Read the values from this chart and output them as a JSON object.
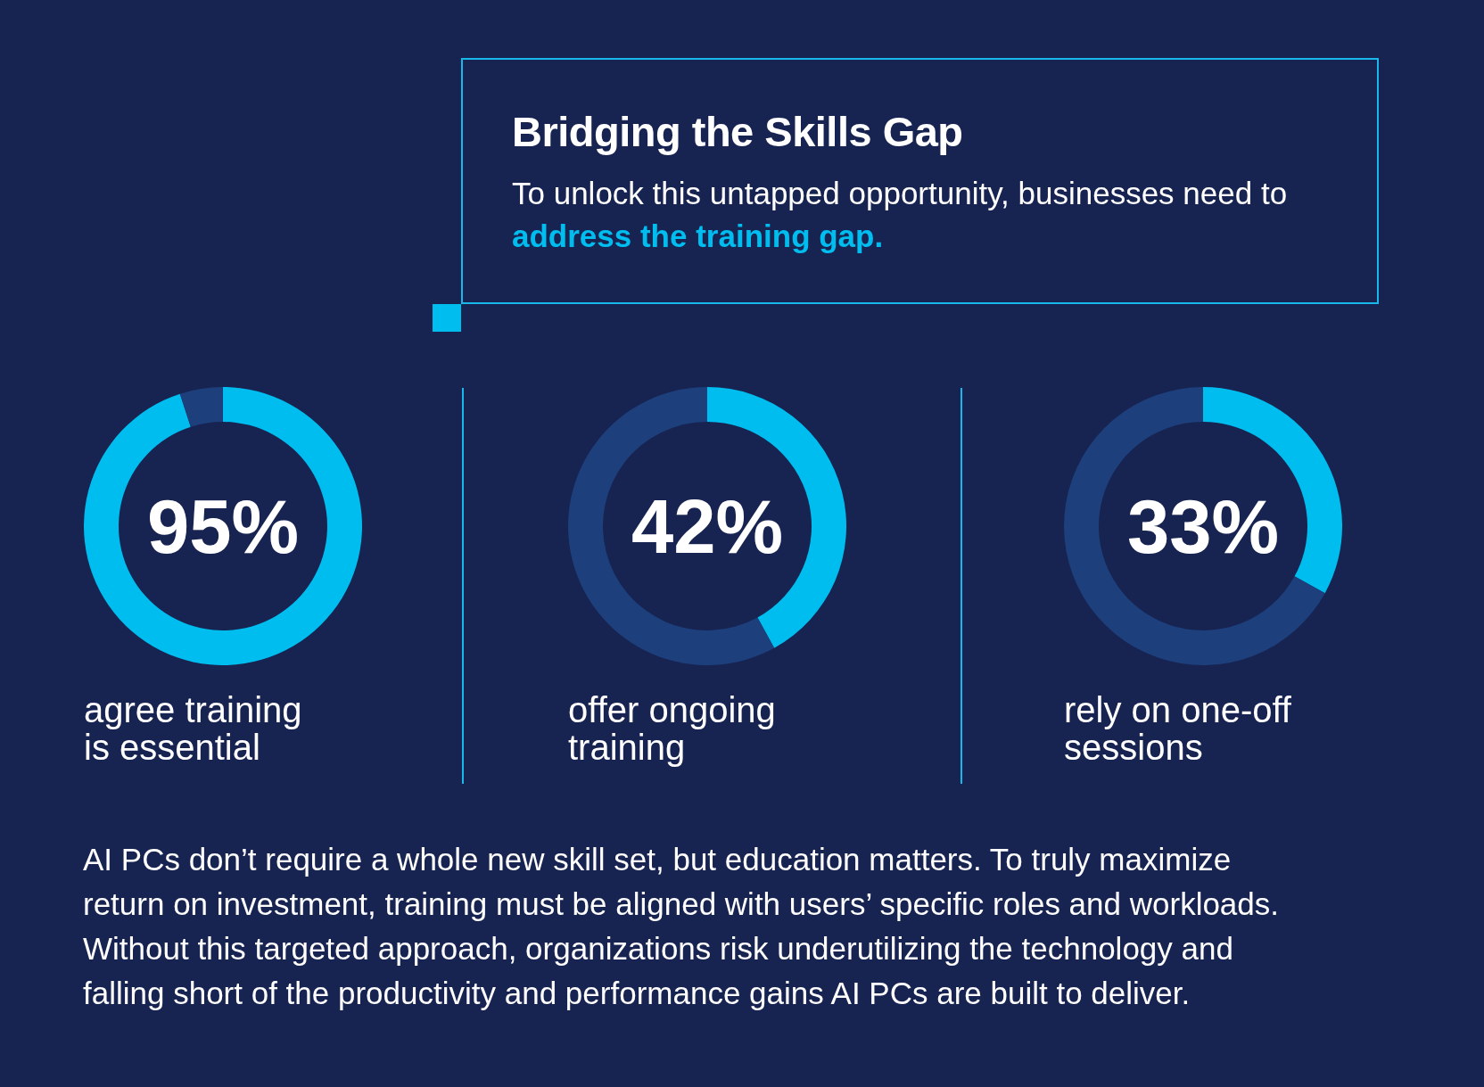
{
  "chart_data": [
    {
      "type": "other",
      "title": "Bridging the Skills Gap",
      "subtitle": "To unlock this untapped opportunity, businesses need to",
      "annotations": [
        "address the training gap."
      ]
    },
    {
      "type": "donut",
      "title": "agree training is essential",
      "categories": [
        null,
        null
      ],
      "values": [
        95,
        5
      ],
      "colors": [
        "#00bdf0",
        "#1d3f7c"
      ],
      "annotations": [
        "95%"
      ]
    },
    {
      "type": "donut",
      "title": "offer ongoing training",
      "categories": [
        null,
        null
      ],
      "values": [
        42,
        58
      ],
      "colors": [
        "#00bdf0",
        "#1d3f7c"
      ],
      "annotations": [
        "42%"
      ]
    },
    {
      "type": "donut",
      "title": "rely on one-off sessions",
      "categories": [
        null,
        null
      ],
      "values": [
        33,
        67
      ],
      "colors": [
        "#00bdf0",
        "#1d3f7c"
      ],
      "annotations": [
        "33%"
      ]
    },
    {
      "type": "other",
      "annotations": [
        "AI PCs don’t require a whole new skill set, but education matters. To truly maximize return on investment, training must be aligned with users’ specific roles and workloads. Without this targeted approach, organizations risk underutilizing the technology and falling short of the productivity and performance gains AI PCs are built to deliver."
      ]
    }
  ]
}
